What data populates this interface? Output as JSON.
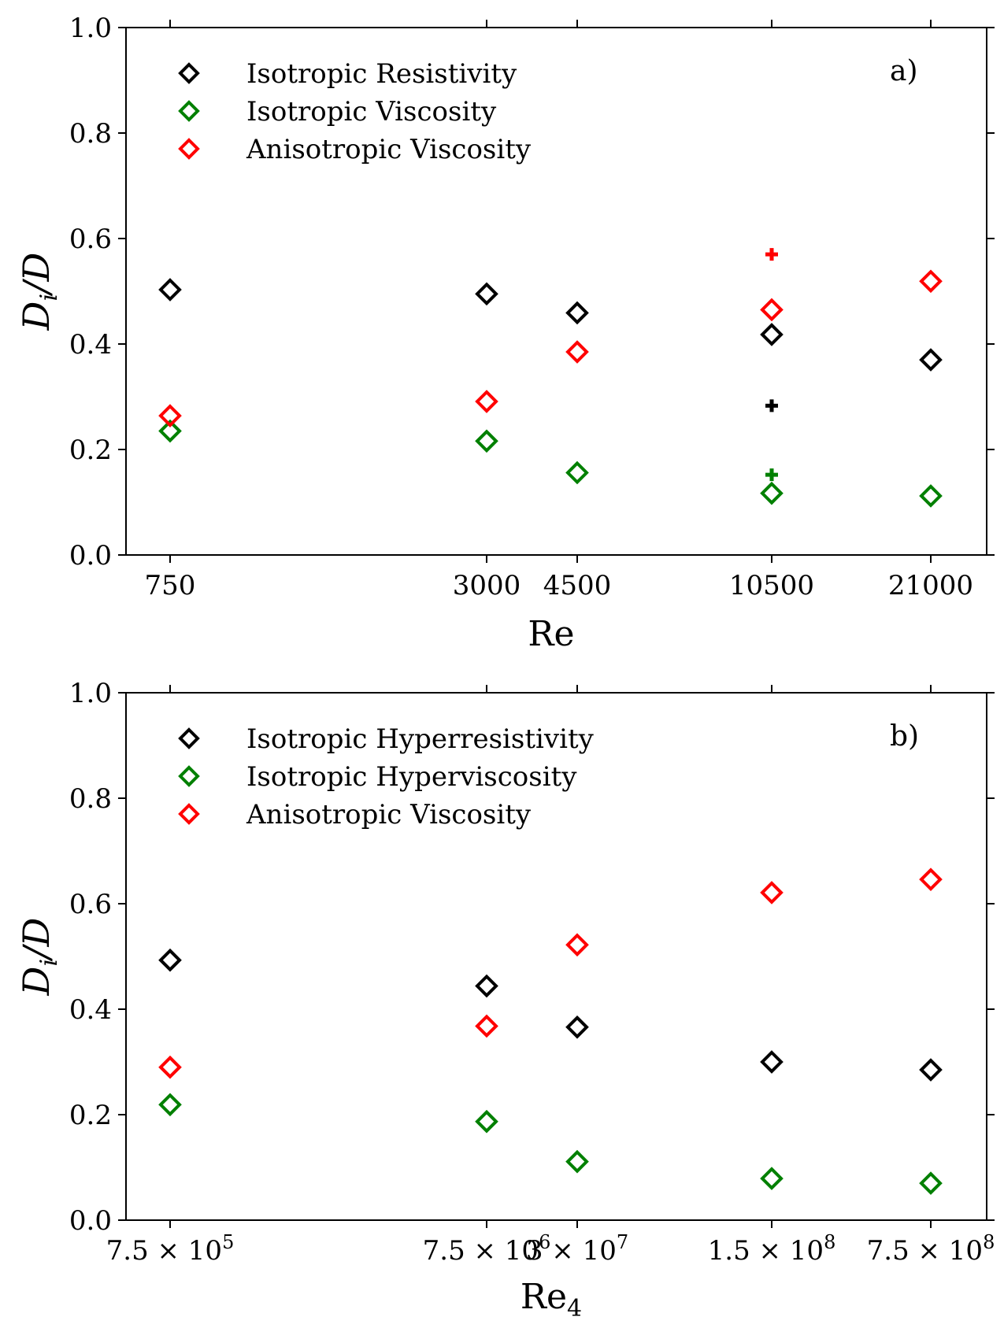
{
  "chart_data": [
    {
      "type": "scatter",
      "panel_label": "a)",
      "xlabel": "Re",
      "ylabel_main": "D",
      "ylabel_sub": "i",
      "ylabel_tail": "/D",
      "ylim": [
        0.0,
        1.0
      ],
      "yticks": [
        "0.0",
        "0.2",
        "0.4",
        "0.6",
        "0.8",
        "1.0"
      ],
      "x_tick_labels": [
        "750",
        "3000",
        "4500",
        "10500",
        "21000"
      ],
      "legend_position": "top-left",
      "series": [
        {
          "name": "Isotropic Resistivity",
          "marker": "diamond",
          "color": "#000000",
          "values": [
            0.503,
            0.495,
            0.459,
            0.418,
            0.37
          ]
        },
        {
          "name": "Isotropic Viscosity",
          "marker": "diamond",
          "color": "#008000",
          "values": [
            0.235,
            0.216,
            0.156,
            0.117,
            0.112
          ]
        },
        {
          "name": "Anisotropic Viscosity",
          "marker": "diamond",
          "color": "#ff0000",
          "values": [
            0.264,
            0.291,
            0.385,
            0.465,
            0.519
          ]
        }
      ],
      "extra_markers": [
        {
          "marker": "plus",
          "color": "#ff0000",
          "x_index": 3,
          "y": 0.57
        },
        {
          "marker": "plus",
          "color": "#000000",
          "x_index": 3,
          "y": 0.283
        },
        {
          "marker": "plus",
          "color": "#008000",
          "x_index": 3,
          "y": 0.152
        }
      ]
    },
    {
      "type": "scatter",
      "panel_label": "b)",
      "xlabel_main": "Re",
      "xlabel_sub": "4",
      "ylabel_main": "D",
      "ylabel_sub": "i",
      "ylabel_tail": "/D",
      "ylim": [
        0.0,
        1.0
      ],
      "yticks": [
        "0.0",
        "0.2",
        "0.4",
        "0.6",
        "0.8",
        "1.0"
      ],
      "x_ticks": [
        {
          "mantissa": "7.5",
          "exponent": "5"
        },
        {
          "mantissa": "7.5",
          "exponent": "6"
        },
        {
          "mantissa": "3",
          "exponent": "7"
        },
        {
          "mantissa": "1.5",
          "exponent": "8"
        },
        {
          "mantissa": "7.5",
          "exponent": "8"
        }
      ],
      "times_sign": "×",
      "base": "10",
      "legend_position": "top-left",
      "series": [
        {
          "name": "Isotropic Hyperresistivity",
          "marker": "diamond",
          "color": "#000000",
          "values": [
            0.493,
            0.444,
            0.366,
            0.3,
            0.285
          ]
        },
        {
          "name": "Isotropic Hyperviscosity",
          "marker": "diamond",
          "color": "#008000",
          "values": [
            0.219,
            0.187,
            0.111,
            0.079,
            0.07
          ]
        },
        {
          "name": "Anisotropic Viscosity",
          "marker": "diamond",
          "color": "#ff0000",
          "values": [
            0.29,
            0.368,
            0.522,
            0.621,
            0.646
          ]
        }
      ]
    }
  ]
}
